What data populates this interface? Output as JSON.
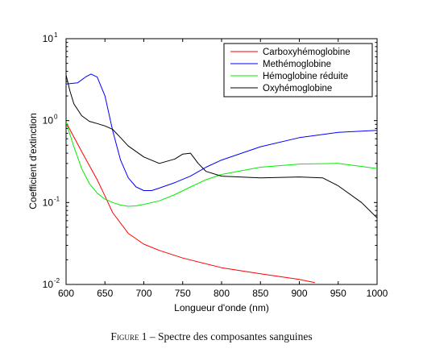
{
  "caption": {
    "figure_label": "Figure 1",
    "text": "– Spectre des composantes sanguines"
  },
  "chart_data": {
    "type": "line",
    "xlabel": "Longueur d'onde (nm)",
    "ylabel": "Coefficient d'extinction",
    "xlim": [
      600,
      1000
    ],
    "ylim": [
      0.01,
      10
    ],
    "yscale": "log",
    "grid": false,
    "legend_position": "top-right",
    "x_ticks": [
      600,
      650,
      700,
      750,
      800,
      850,
      900,
      950,
      1000
    ],
    "y_ticks": [
      {
        "value": 0.01,
        "base": "10",
        "exp": "-2"
      },
      {
        "value": 0.1,
        "base": "10",
        "exp": "-1"
      },
      {
        "value": 1,
        "base": "10",
        "exp": "0"
      },
      {
        "value": 10,
        "base": "10",
        "exp": "1"
      }
    ],
    "series": [
      {
        "name": "Carboxyhémoglobine",
        "color": "#ff0000",
        "x": [
          600,
          620,
          640,
          650,
          660,
          680,
          700,
          720,
          750,
          800,
          850,
          900,
          920
        ],
        "y": [
          0.95,
          0.42,
          0.19,
          0.12,
          0.075,
          0.042,
          0.031,
          0.026,
          0.021,
          0.016,
          0.0135,
          0.0115,
          0.0105
        ]
      },
      {
        "name": "Methémoglobine",
        "color": "#0000ff",
        "x": [
          600,
          615,
          625,
          632,
          640,
          650,
          660,
          670,
          680,
          690,
          700,
          710,
          720,
          740,
          760,
          780,
          800,
          850,
          900,
          950,
          1000
        ],
        "y": [
          2.8,
          2.9,
          3.4,
          3.7,
          3.4,
          2.0,
          0.75,
          0.33,
          0.2,
          0.155,
          0.14,
          0.14,
          0.15,
          0.175,
          0.21,
          0.27,
          0.33,
          0.48,
          0.62,
          0.72,
          0.76
        ]
      },
      {
        "name": "Hémoglobine réduite",
        "color": "#00ee00",
        "x": [
          600,
          610,
          620,
          630,
          640,
          650,
          660,
          670,
          680,
          690,
          700,
          720,
          740,
          760,
          780,
          800,
          850,
          900,
          950,
          1000
        ],
        "y": [
          0.95,
          0.48,
          0.26,
          0.17,
          0.13,
          0.11,
          0.1,
          0.093,
          0.09,
          0.091,
          0.095,
          0.105,
          0.125,
          0.155,
          0.19,
          0.22,
          0.27,
          0.295,
          0.3,
          0.26
        ]
      },
      {
        "name": "Oxyhémoglobine",
        "color": "#000000",
        "x": [
          600,
          605,
          610,
          620,
          630,
          640,
          650,
          660,
          670,
          680,
          700,
          720,
          740,
          750,
          760,
          770,
          780,
          800,
          850,
          900,
          930,
          950,
          980,
          1000
        ],
        "y": [
          3.6,
          2.3,
          1.6,
          1.15,
          0.98,
          0.92,
          0.86,
          0.78,
          0.62,
          0.49,
          0.36,
          0.3,
          0.34,
          0.39,
          0.4,
          0.3,
          0.24,
          0.21,
          0.2,
          0.205,
          0.2,
          0.16,
          0.1,
          0.065
        ]
      }
    ]
  }
}
